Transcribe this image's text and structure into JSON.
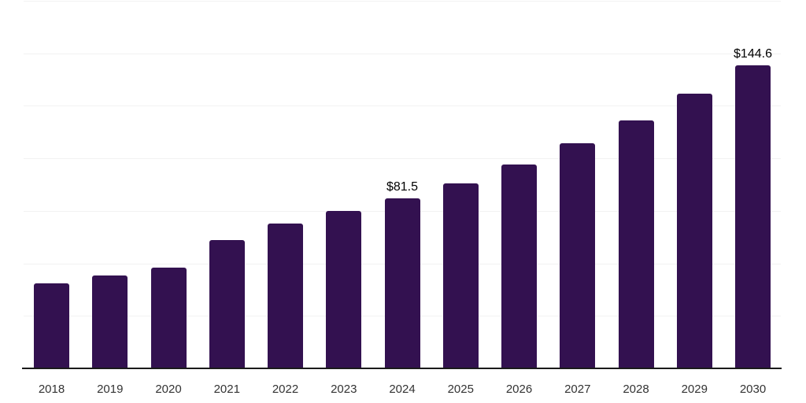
{
  "chart_data": {
    "type": "bar",
    "title": "",
    "xlabel": "",
    "ylabel": "",
    "categories": [
      "2018",
      "2019",
      "2020",
      "2021",
      "2022",
      "2023",
      "2024",
      "2025",
      "2026",
      "2027",
      "2028",
      "2029",
      "2030"
    ],
    "values": [
      40.8,
      44.5,
      48.3,
      61.3,
      69.2,
      75.2,
      81.5,
      88.6,
      97.6,
      107.6,
      118.5,
      131.2,
      144.6
    ],
    "point_labels": [
      "",
      "",
      "",
      "",
      "",
      "",
      "$81.5",
      "",
      "",
      "",
      "",
      "",
      "$144.6"
    ],
    "ylim": [
      0,
      175
    ],
    "gridline_step": 25,
    "grid": true,
    "legend": false,
    "y_axis_labels_visible": false,
    "colors": {
      "bar": "#331150",
      "axis_line": "#1a1a1a",
      "gridline": "#f2f2f2",
      "tick_label": "#333333",
      "value_label": "#000000",
      "background": "#ffffff"
    }
  }
}
